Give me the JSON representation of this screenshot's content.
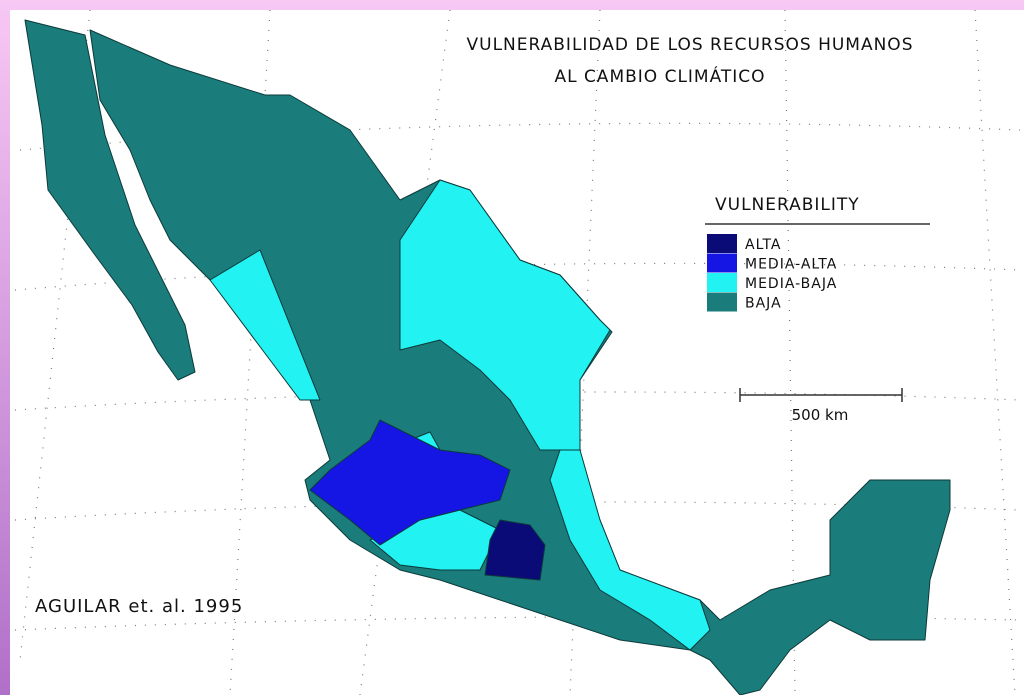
{
  "title_lines": [
    "VULNERABILIDAD DE LOS RECURSOS HUMANOS",
    "AL CAMBIO CLIMÁTICO"
  ],
  "legend": {
    "title": "VULNERABILITY",
    "items": [
      {
        "label": "ALTA",
        "color": "#0b0b78"
      },
      {
        "label": "MEDIA-ALTA",
        "color": "#1616e4"
      },
      {
        "label": "MEDIA-BAJA",
        "color": "#22f2f2"
      },
      {
        "label": "BAJA",
        "color": "#1b7c7c"
      }
    ]
  },
  "scale": "500 km",
  "credit": "AGUILAR et. al. 1995"
}
